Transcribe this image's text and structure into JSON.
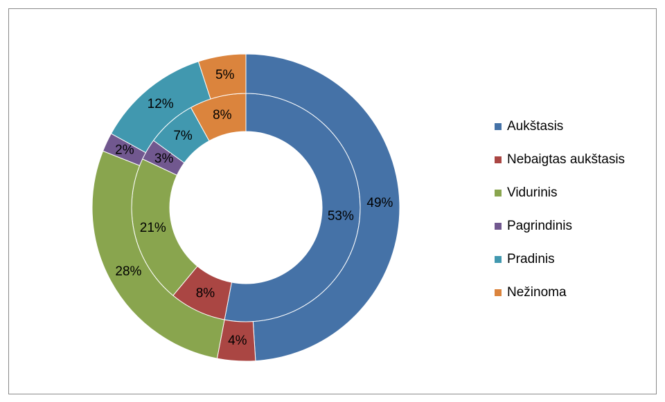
{
  "chart_data": {
    "type": "doughnut",
    "categories": [
      "Aukštasis",
      "Nebaigtas aukštasis",
      "Vidurinis",
      "Pagrindinis",
      "Pradinis",
      "Nežinoma"
    ],
    "colors": [
      "#4572a7",
      "#aa4643",
      "#89a54e",
      "#71588f",
      "#4198af",
      "#db843d"
    ],
    "series": [
      {
        "values": [
          53,
          8,
          21,
          3,
          7,
          8
        ],
        "value_labels": [
          "53%",
          "8%",
          "21%",
          "3%",
          "7%",
          "8%"
        ]
      },
      {
        "values": [
          49,
          4,
          28,
          2,
          12,
          5
        ],
        "value_labels": [
          "49%",
          "4%",
          "28%",
          "2%",
          "12%",
          "5%"
        ]
      }
    ],
    "legend": "right"
  }
}
